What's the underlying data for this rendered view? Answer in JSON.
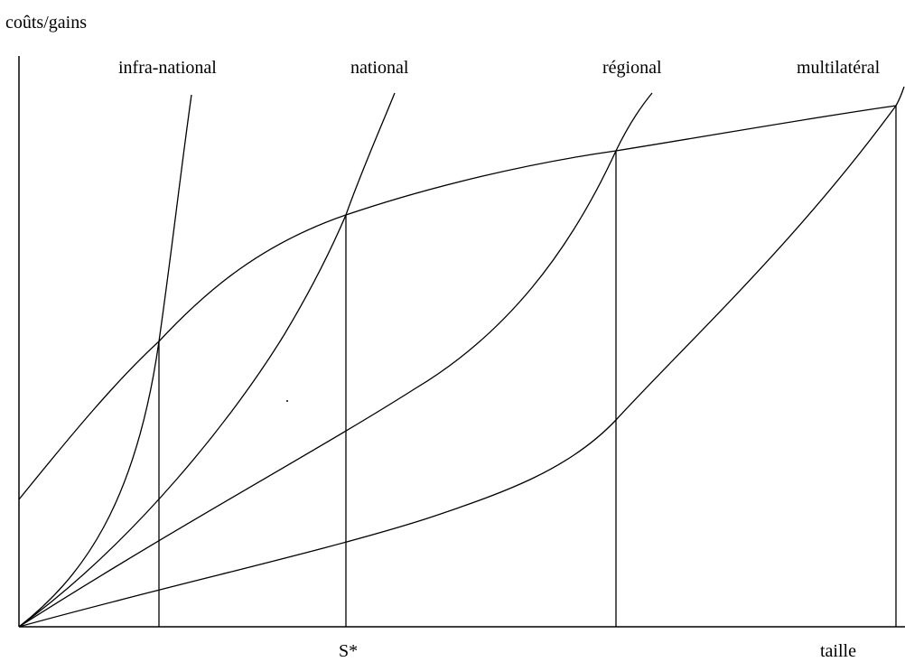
{
  "labels": {
    "y_axis": "coûts/gains",
    "x_axis": "taille",
    "optimum": "S*"
  },
  "cost_curves": [
    {
      "id": "infra",
      "label": "infra-national"
    },
    {
      "id": "national",
      "label": "national"
    },
    {
      "id": "regional",
      "label": "régional"
    },
    {
      "id": "multi",
      "label": "multilatéral"
    }
  ],
  "colors": {
    "ink": "#000000",
    "background": "#ffffff"
  }
}
